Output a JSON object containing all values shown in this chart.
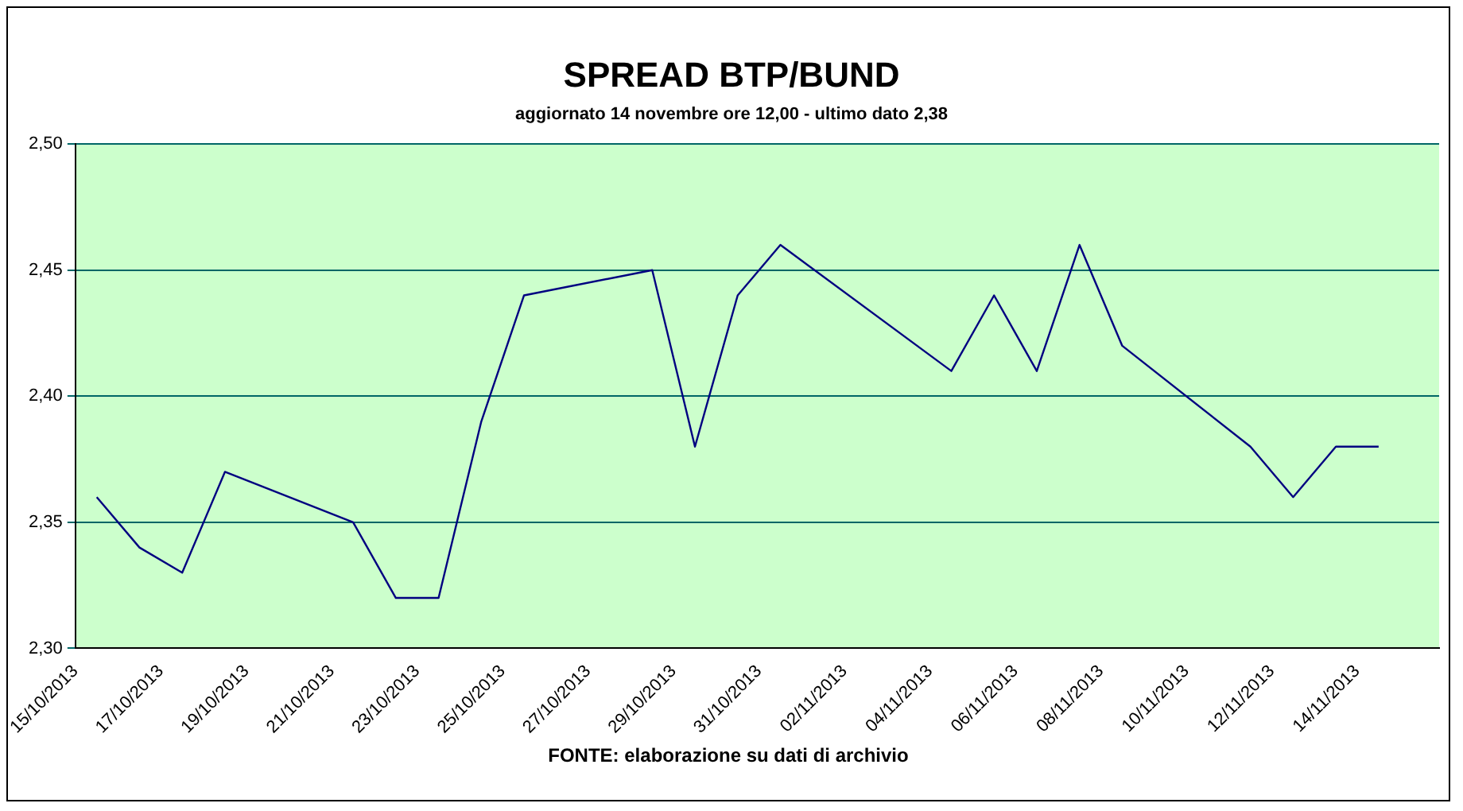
{
  "chart_data": {
    "type": "line",
    "title": "SPREAD BTP/BUND",
    "subtitle": "aggiornato 14 novembre ore 12,00 - ultimo dato 2,38",
    "x": [
      "2013-10-15T12:00",
      "2013-10-16T12:00",
      "2013-10-17T12:00",
      "2013-10-18T12:00",
      "2013-10-21T12:00",
      "2013-10-22T12:00",
      "2013-10-23T12:00",
      "2013-10-24T12:00",
      "2013-10-25T12:00",
      "2013-10-28T12:00",
      "2013-10-29T12:00",
      "2013-10-30T12:00",
      "2013-10-31T12:00",
      "2013-11-04T12:00",
      "2013-11-05T12:00",
      "2013-11-06T12:00",
      "2013-11-07T12:00",
      "2013-11-08T12:00",
      "2013-11-11T12:00",
      "2013-11-12T12:00",
      "2013-11-13T12:00",
      "2013-11-14T12:00"
    ],
    "series": [
      {
        "color": "#000080",
        "values": [
          2.36,
          2.34,
          2.33,
          2.37,
          2.35,
          2.32,
          2.32,
          2.39,
          2.44,
          2.45,
          2.38,
          2.44,
          2.46,
          2.41,
          2.44,
          2.41,
          2.46,
          2.42,
          2.38,
          2.36,
          2.38,
          2.38
        ]
      }
    ],
    "xlim": [
      "2013-10-15",
      "2013-11-15T22:00"
    ],
    "xticks": [
      {
        "value": "2013-10-15",
        "label": "15/10/2013"
      },
      {
        "value": "2013-10-17",
        "label": "17/10/2013"
      },
      {
        "value": "2013-10-19",
        "label": "19/10/2013"
      },
      {
        "value": "2013-10-21",
        "label": "21/10/2013"
      },
      {
        "value": "2013-10-23",
        "label": "23/10/2013"
      },
      {
        "value": "2013-10-25",
        "label": "25/10/2013"
      },
      {
        "value": "2013-10-27",
        "label": "27/10/2013"
      },
      {
        "value": "2013-10-29",
        "label": "29/10/2013"
      },
      {
        "value": "2013-10-31",
        "label": "31/10/2013"
      },
      {
        "value": "2013-11-02",
        "label": "02/11/2013"
      },
      {
        "value": "2013-11-04",
        "label": "04/11/2013"
      },
      {
        "value": "2013-11-06",
        "label": "06/11/2013"
      },
      {
        "value": "2013-11-08",
        "label": "08/11/2013"
      },
      {
        "value": "2013-11-10",
        "label": "10/11/2013"
      },
      {
        "value": "2013-11-12",
        "label": "12/11/2013"
      },
      {
        "value": "2013-11-14",
        "label": "14/11/2013"
      }
    ],
    "ylim": [
      2.3,
      2.5
    ],
    "yticks": [
      {
        "value": 2.3,
        "label": "2,30"
      },
      {
        "value": 2.35,
        "label": "2,35"
      },
      {
        "value": 2.4,
        "label": "2,40"
      },
      {
        "value": 2.45,
        "label": "2,45"
      },
      {
        "value": 2.5,
        "label": "2,50"
      }
    ],
    "grid": "y",
    "legend": false,
    "marker": "none",
    "line_style": "solid",
    "annotations": [
      "FONTE: elaborazione su dati di archivio"
    ]
  }
}
